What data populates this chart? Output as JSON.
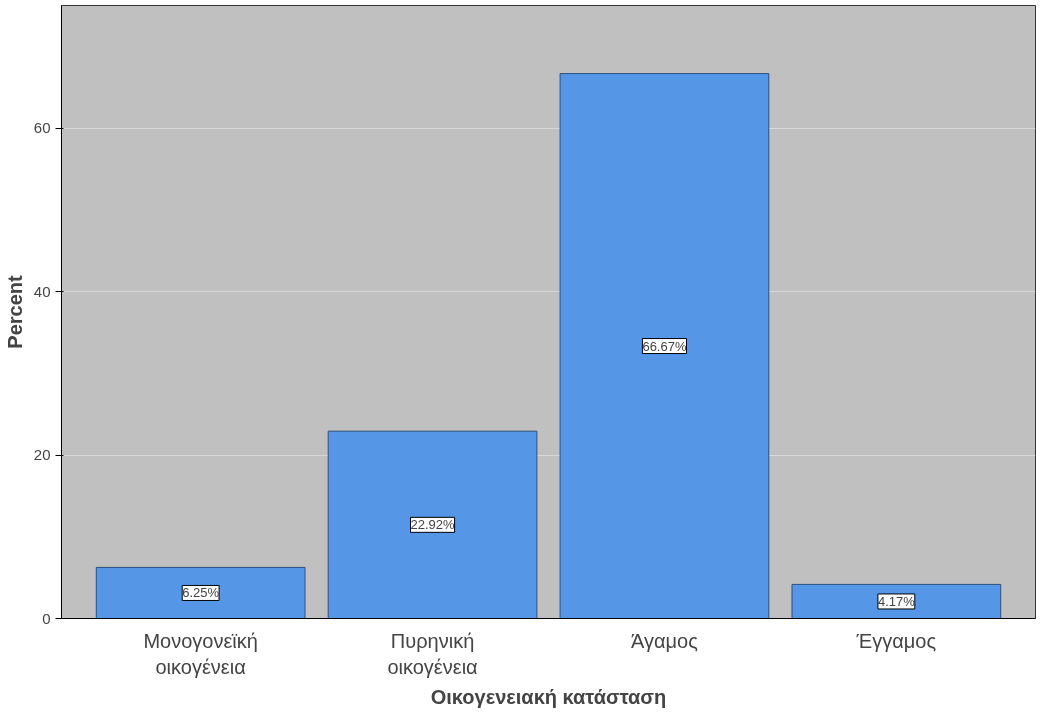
{
  "chart_data": {
    "type": "bar",
    "categories": [
      "Μονογονεϊκή\nοικογένεια",
      "Πυρηνική\nοικογένεια",
      "Άγαμος",
      "Έγγαμος"
    ],
    "values": [
      6.25,
      22.92,
      66.67,
      4.17
    ],
    "value_labels": [
      "6.25%",
      "22.92%",
      "66.67%",
      "4.17%"
    ],
    "color": "#5596e6",
    "xlabel": "Οικογενειακή κατάσταση",
    "ylabel": "Percent",
    "ylim": [
      0,
      75
    ],
    "yticks": [
      0,
      20,
      40,
      60
    ],
    "grid": "y"
  }
}
